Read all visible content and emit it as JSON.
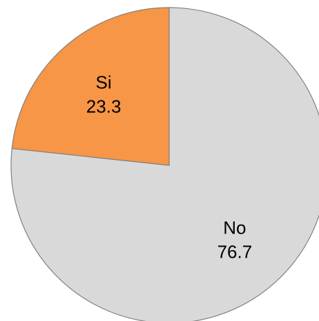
{
  "chart_data": {
    "type": "pie",
    "slices": [
      {
        "label": "No",
        "value": 76.7,
        "color": "#d9d9d9"
      },
      {
        "label": "Si",
        "value": 23.3,
        "color": "#f79646"
      }
    ],
    "start": "top",
    "direction": "clockwise"
  }
}
